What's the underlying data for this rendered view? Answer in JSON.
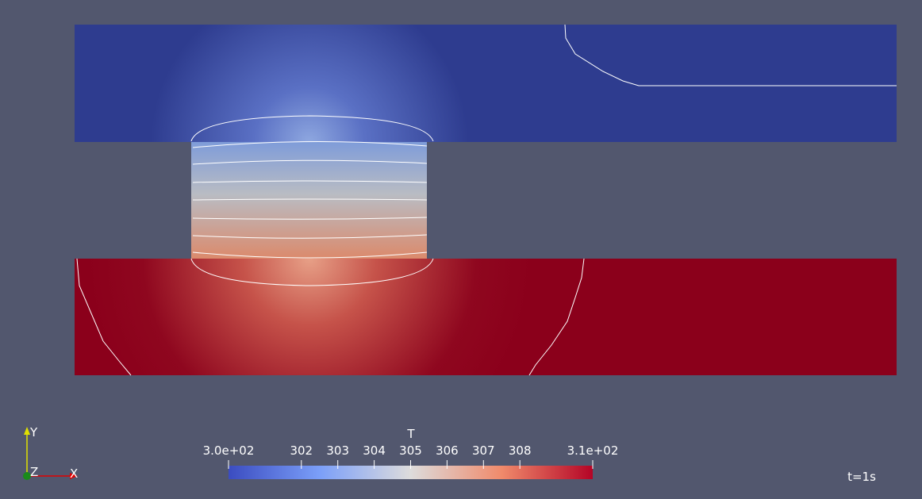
{
  "colorbar": {
    "title": "T",
    "range": [
      300,
      310
    ],
    "ticks": [
      {
        "value": 300,
        "label": "3.0e+02"
      },
      302,
      303,
      304,
      305,
      306,
      307,
      308,
      {
        "value": 310,
        "label": "3.1e+02"
      }
    ]
  },
  "annotation": "t=1s",
  "axes": {
    "x": "X",
    "y": "Y",
    "z": "Z"
  }
}
